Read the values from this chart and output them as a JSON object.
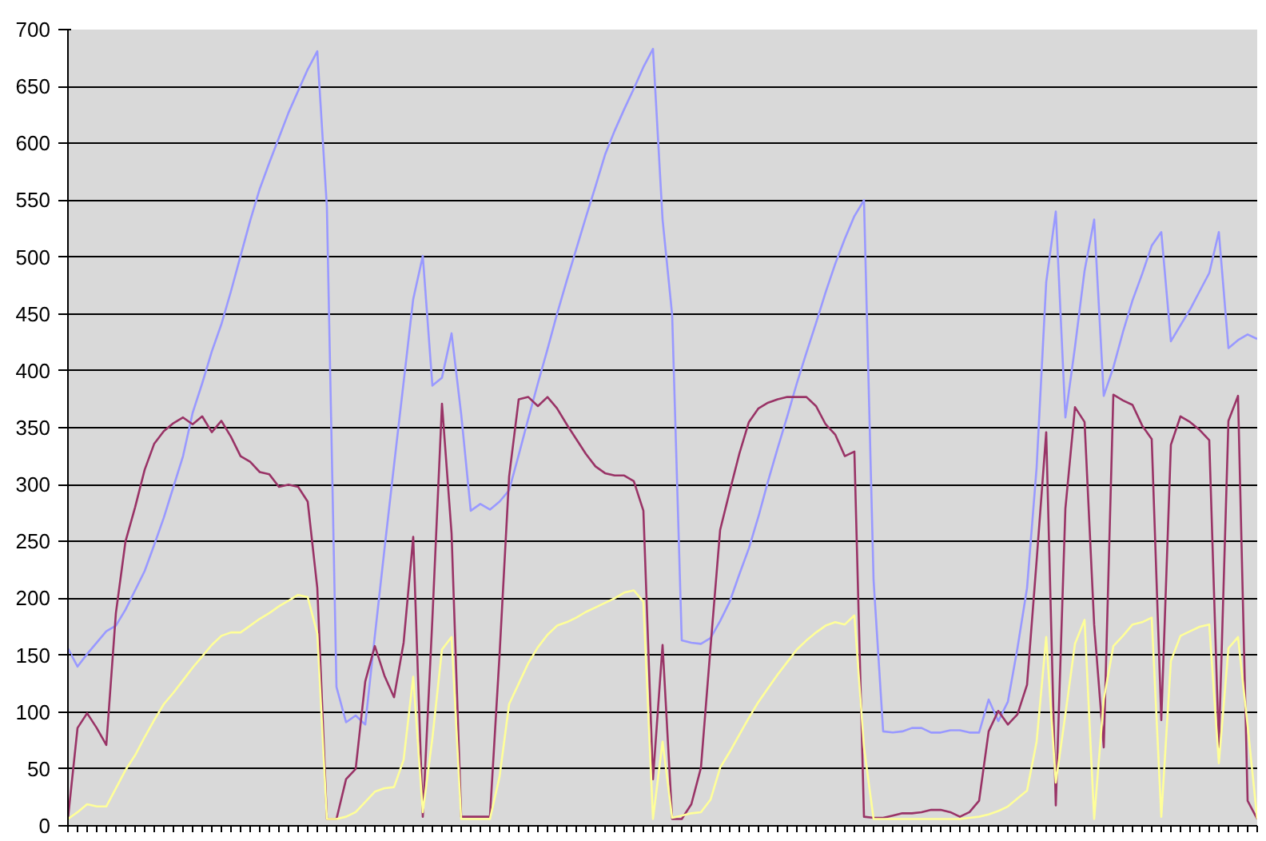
{
  "chart_data": {
    "type": "line",
    "ylim": [
      0,
      700
    ],
    "yticks": [
      0,
      50,
      100,
      150,
      200,
      250,
      300,
      350,
      400,
      450,
      500,
      550,
      600,
      650,
      700
    ],
    "grid": "y",
    "tick_labels": "y",
    "marker": "none",
    "line_style": "solid",
    "categories": [
      null,
      null,
      null,
      null,
      null,
      null,
      null,
      null,
      null,
      null,
      null,
      null,
      null,
      null,
      null,
      null,
      null,
      null,
      null,
      null,
      null,
      null,
      null,
      null,
      null,
      null,
      null,
      null,
      null,
      null,
      null,
      null,
      null,
      null,
      null,
      null,
      null,
      null,
      null,
      null,
      null,
      null,
      null,
      null,
      null,
      null,
      null,
      null,
      null,
      null,
      null,
      null,
      null,
      null,
      null,
      null,
      null,
      null,
      null,
      null,
      null,
      null,
      null,
      null,
      null,
      null,
      null,
      null,
      null,
      null,
      null,
      null,
      null,
      null,
      null,
      null,
      null,
      null,
      null,
      null,
      null,
      null,
      null,
      null,
      null,
      null,
      null,
      null,
      null,
      null,
      null,
      null,
      null,
      null,
      null,
      null,
      null,
      null,
      null,
      null,
      null,
      null,
      null,
      null,
      null,
      null,
      null,
      null,
      null,
      null,
      null,
      null,
      null,
      null,
      null,
      null,
      null,
      null,
      null,
      null,
      null,
      null,
      null,
      null,
      null
    ],
    "series": [
      {
        "color": "#9999ff",
        "values": [
          156,
          140,
          151,
          161,
          171,
          176,
          190,
          207,
          224,
          247,
          271,
          298,
          325,
          363,
          389,
          417,
          441,
          470,
          501,
          532,
          560,
          583,
          605,
          627,
          646,
          665,
          681,
          544,
          122,
          91,
          97,
          89,
          167,
          243,
          317,
          390,
          463,
          501,
          387,
          394,
          433,
          362,
          277,
          283,
          278,
          285,
          295,
          326,
          358,
          389,
          419,
          450,
          479,
          507,
          535,
          562,
          590,
          611,
          630,
          648,
          667,
          683,
          533,
          449,
          163,
          161,
          160,
          165,
          180,
          197,
          221,
          244,
          272,
          303,
          332,
          360,
          389,
          416,
          442,
          469,
          494,
          516,
          536,
          550,
          216,
          83,
          82,
          83,
          86,
          86,
          82,
          82,
          84,
          84,
          82,
          82,
          111,
          92,
          109,
          156,
          209,
          315,
          478,
          540,
          359,
          421,
          488,
          533,
          378,
          403,
          434,
          462,
          485,
          510,
          522,
          426,
          440,
          454,
          470,
          486,
          522,
          420,
          427,
          432,
          428
        ]
      },
      {
        "color": "#993366",
        "values": [
          6,
          86,
          99,
          86,
          71,
          187,
          250,
          280,
          313,
          336,
          347,
          354,
          359,
          353,
          360,
          346,
          356,
          342,
          325,
          320,
          311,
          309,
          298,
          300,
          298,
          285,
          209,
          6,
          6,
          41,
          50,
          127,
          158,
          132,
          113,
          161,
          254,
          8,
          182,
          371,
          257,
          8,
          8,
          8,
          8,
          150,
          307,
          375,
          377,
          369,
          377,
          367,
          353,
          340,
          327,
          316,
          310,
          308,
          308,
          303,
          277,
          41,
          159,
          6,
          6,
          19,
          51,
          157,
          260,
          294,
          327,
          355,
          367,
          372,
          375,
          377,
          377,
          377,
          369,
          353,
          344,
          325,
          329,
          8,
          7,
          7,
          9,
          11,
          11,
          12,
          14,
          14,
          12,
          8,
          12,
          22,
          83,
          101,
          89,
          98,
          124,
          233,
          346,
          18,
          279,
          368,
          355,
          177,
          69,
          379,
          374,
          370,
          352,
          340,
          93,
          335,
          360,
          355,
          348,
          339,
          69,
          356,
          378,
          22,
          6
        ]
      },
      {
        "color": "#ffff99",
        "values": [
          6,
          12,
          19,
          17,
          17,
          33,
          49,
          62,
          78,
          93,
          107,
          117,
          128,
          139,
          149,
          159,
          167,
          170,
          170,
          176,
          182,
          187,
          193,
          198,
          203,
          201,
          169,
          6,
          6,
          8,
          12,
          21,
          30,
          33,
          34,
          58,
          131,
          12,
          77,
          155,
          166,
          6,
          6,
          6,
          6,
          43,
          107,
          125,
          143,
          157,
          168,
          176,
          179,
          183,
          188,
          192,
          196,
          200,
          205,
          207,
          197,
          6,
          74,
          7,
          9,
          11,
          12,
          23,
          51,
          65,
          80,
          95,
          109,
          121,
          133,
          144,
          155,
          163,
          170,
          176,
          179,
          177,
          185,
          69,
          6,
          6,
          6,
          6,
          6,
          6,
          6,
          6,
          6,
          6,
          7,
          8,
          10,
          13,
          17,
          24,
          31,
          74,
          166,
          38,
          98,
          160,
          181,
          6,
          111,
          158,
          167,
          177,
          179,
          183,
          8,
          145,
          167,
          171,
          175,
          177,
          55,
          156,
          166,
          88,
          6
        ]
      }
    ]
  }
}
